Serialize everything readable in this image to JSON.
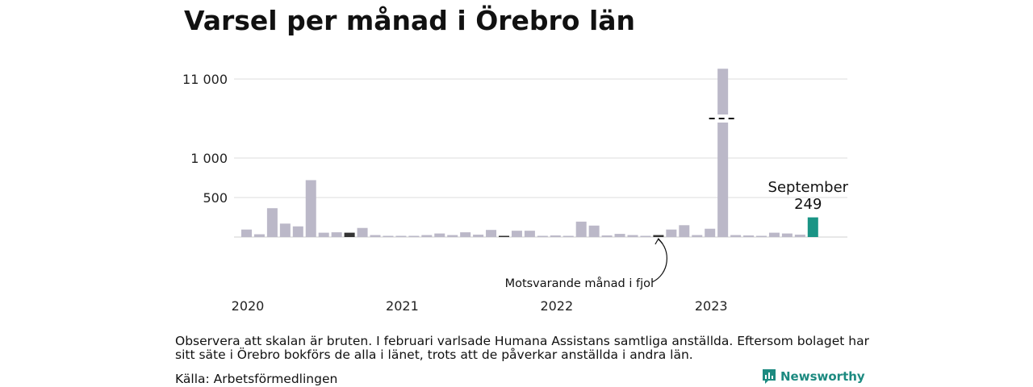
{
  "title": "Varsel per månad i Örebro län",
  "chart_data": {
    "type": "bar",
    "title": "Varsel per månad i Örebro län",
    "broken_scale": true,
    "y_ticks": [
      {
        "value": 500,
        "label": "500"
      },
      {
        "value": 1000,
        "label": "1 000"
      },
      {
        "value": 11000,
        "label": "11 000"
      }
    ],
    "year_labels": [
      "2020",
      "2021",
      "2022",
      "2023"
    ],
    "months": [
      "2020-01",
      "2020-02",
      "2020-03",
      "2020-04",
      "2020-05",
      "2020-06",
      "2020-07",
      "2020-08",
      "2020-09",
      "2020-10",
      "2020-11",
      "2020-12",
      "2021-01",
      "2021-02",
      "2021-03",
      "2021-04",
      "2021-05",
      "2021-06",
      "2021-07",
      "2021-08",
      "2021-09",
      "2021-10",
      "2021-11",
      "2021-12",
      "2022-01",
      "2022-02",
      "2022-03",
      "2022-04",
      "2022-05",
      "2022-06",
      "2022-07",
      "2022-08",
      "2022-09",
      "2022-10",
      "2022-11",
      "2022-12",
      "2023-01",
      "2023-02",
      "2023-03",
      "2023-04",
      "2023-05",
      "2023-06",
      "2023-07",
      "2023-08",
      "2023-09"
    ],
    "values": [
      95,
      35,
      365,
      170,
      135,
      720,
      55,
      60,
      55,
      115,
      25,
      5,
      10,
      15,
      25,
      45,
      25,
      60,
      30,
      90,
      15,
      80,
      80,
      5,
      20,
      15,
      195,
      145,
      20,
      40,
      25,
      5,
      25,
      95,
      150,
      25,
      105,
      12300,
      25,
      20,
      15,
      55,
      45,
      30,
      249
    ],
    "colors": {
      "default": "#bbb8c8",
      "previous_year": "#333333",
      "current": "#1a9485"
    },
    "highlight_index": 44,
    "previous_year_index": 32,
    "previous_year_highlights": [
      8,
      20,
      32
    ],
    "annotation_current": {
      "month_label": "September",
      "value_label": "249"
    },
    "annotation_previous": "Motsvarande månad i fjol"
  },
  "note": "Observera att skalan är bruten. I februari varlsade Humana Assistans samtliga anställda. Eftersom bolaget har sitt säte i Örebro bokförs de alla i länet, trots att de påverkar anställda i andra län.",
  "source": "Källa: Arbetsförmedlingen",
  "brand": "Newsworthy"
}
